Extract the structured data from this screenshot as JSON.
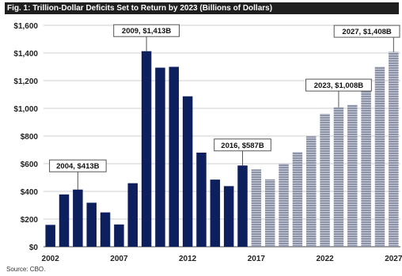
{
  "chart_data": {
    "type": "bar",
    "title": "Fig. 1: Trillion-Dollar Deficits Set to Return by 2023 (Billions of Dollars)",
    "source": "Source: CBO.",
    "xlabel": "",
    "ylabel": "",
    "ylim": [
      0,
      1600
    ],
    "y_ticks": [
      "$0",
      "$200",
      "$400",
      "$600",
      "$800",
      "$1,000",
      "$1,200",
      "$1,400",
      "$1,600"
    ],
    "x_tick_labels": [
      "2002",
      "2007",
      "2012",
      "2017",
      "2022",
      "2027"
    ],
    "grid": true,
    "categories": [
      "2002",
      "2003",
      "2004",
      "2005",
      "2006",
      "2007",
      "2008",
      "2009",
      "2010",
      "2011",
      "2012",
      "2013",
      "2014",
      "2015",
      "2016",
      "2017",
      "2018",
      "2019",
      "2020",
      "2021",
      "2022",
      "2023",
      "2024",
      "2025",
      "2026",
      "2027"
    ],
    "series": [
      {
        "values": [
          158,
          378,
          413,
          318,
          248,
          161,
          459,
          1413,
          1294,
          1300,
          1087,
          680,
          485,
          438,
          587,
          559,
          487,
          601,
          684,
          798,
          961,
          1008,
          1025,
          1166,
          1300,
          1408
        ],
        "styles": [
          "actual",
          "actual",
          "actual",
          "actual",
          "actual",
          "actual",
          "actual",
          "actual",
          "actual",
          "actual",
          "actual",
          "actual",
          "actual",
          "actual",
          "actual",
          "projected",
          "projected",
          "projected",
          "projected",
          "projected",
          "projected",
          "projected",
          "projected",
          "projected",
          "projected",
          "projected"
        ]
      }
    ],
    "annotations": [
      {
        "label": "2004, $413B",
        "category": "2004"
      },
      {
        "label": "2009, $1,413B",
        "category": "2009"
      },
      {
        "label": "2016, $587B",
        "category": "2016"
      },
      {
        "label": "2023, $1,008B",
        "category": "2023"
      },
      {
        "label": "2027, $1,408B",
        "category": "2027"
      }
    ],
    "colors": {
      "actual": "#0d1f5c",
      "projected": "#8c93a6",
      "stripe": "#c9ccd6",
      "grid": "#cfcfcf"
    }
  }
}
